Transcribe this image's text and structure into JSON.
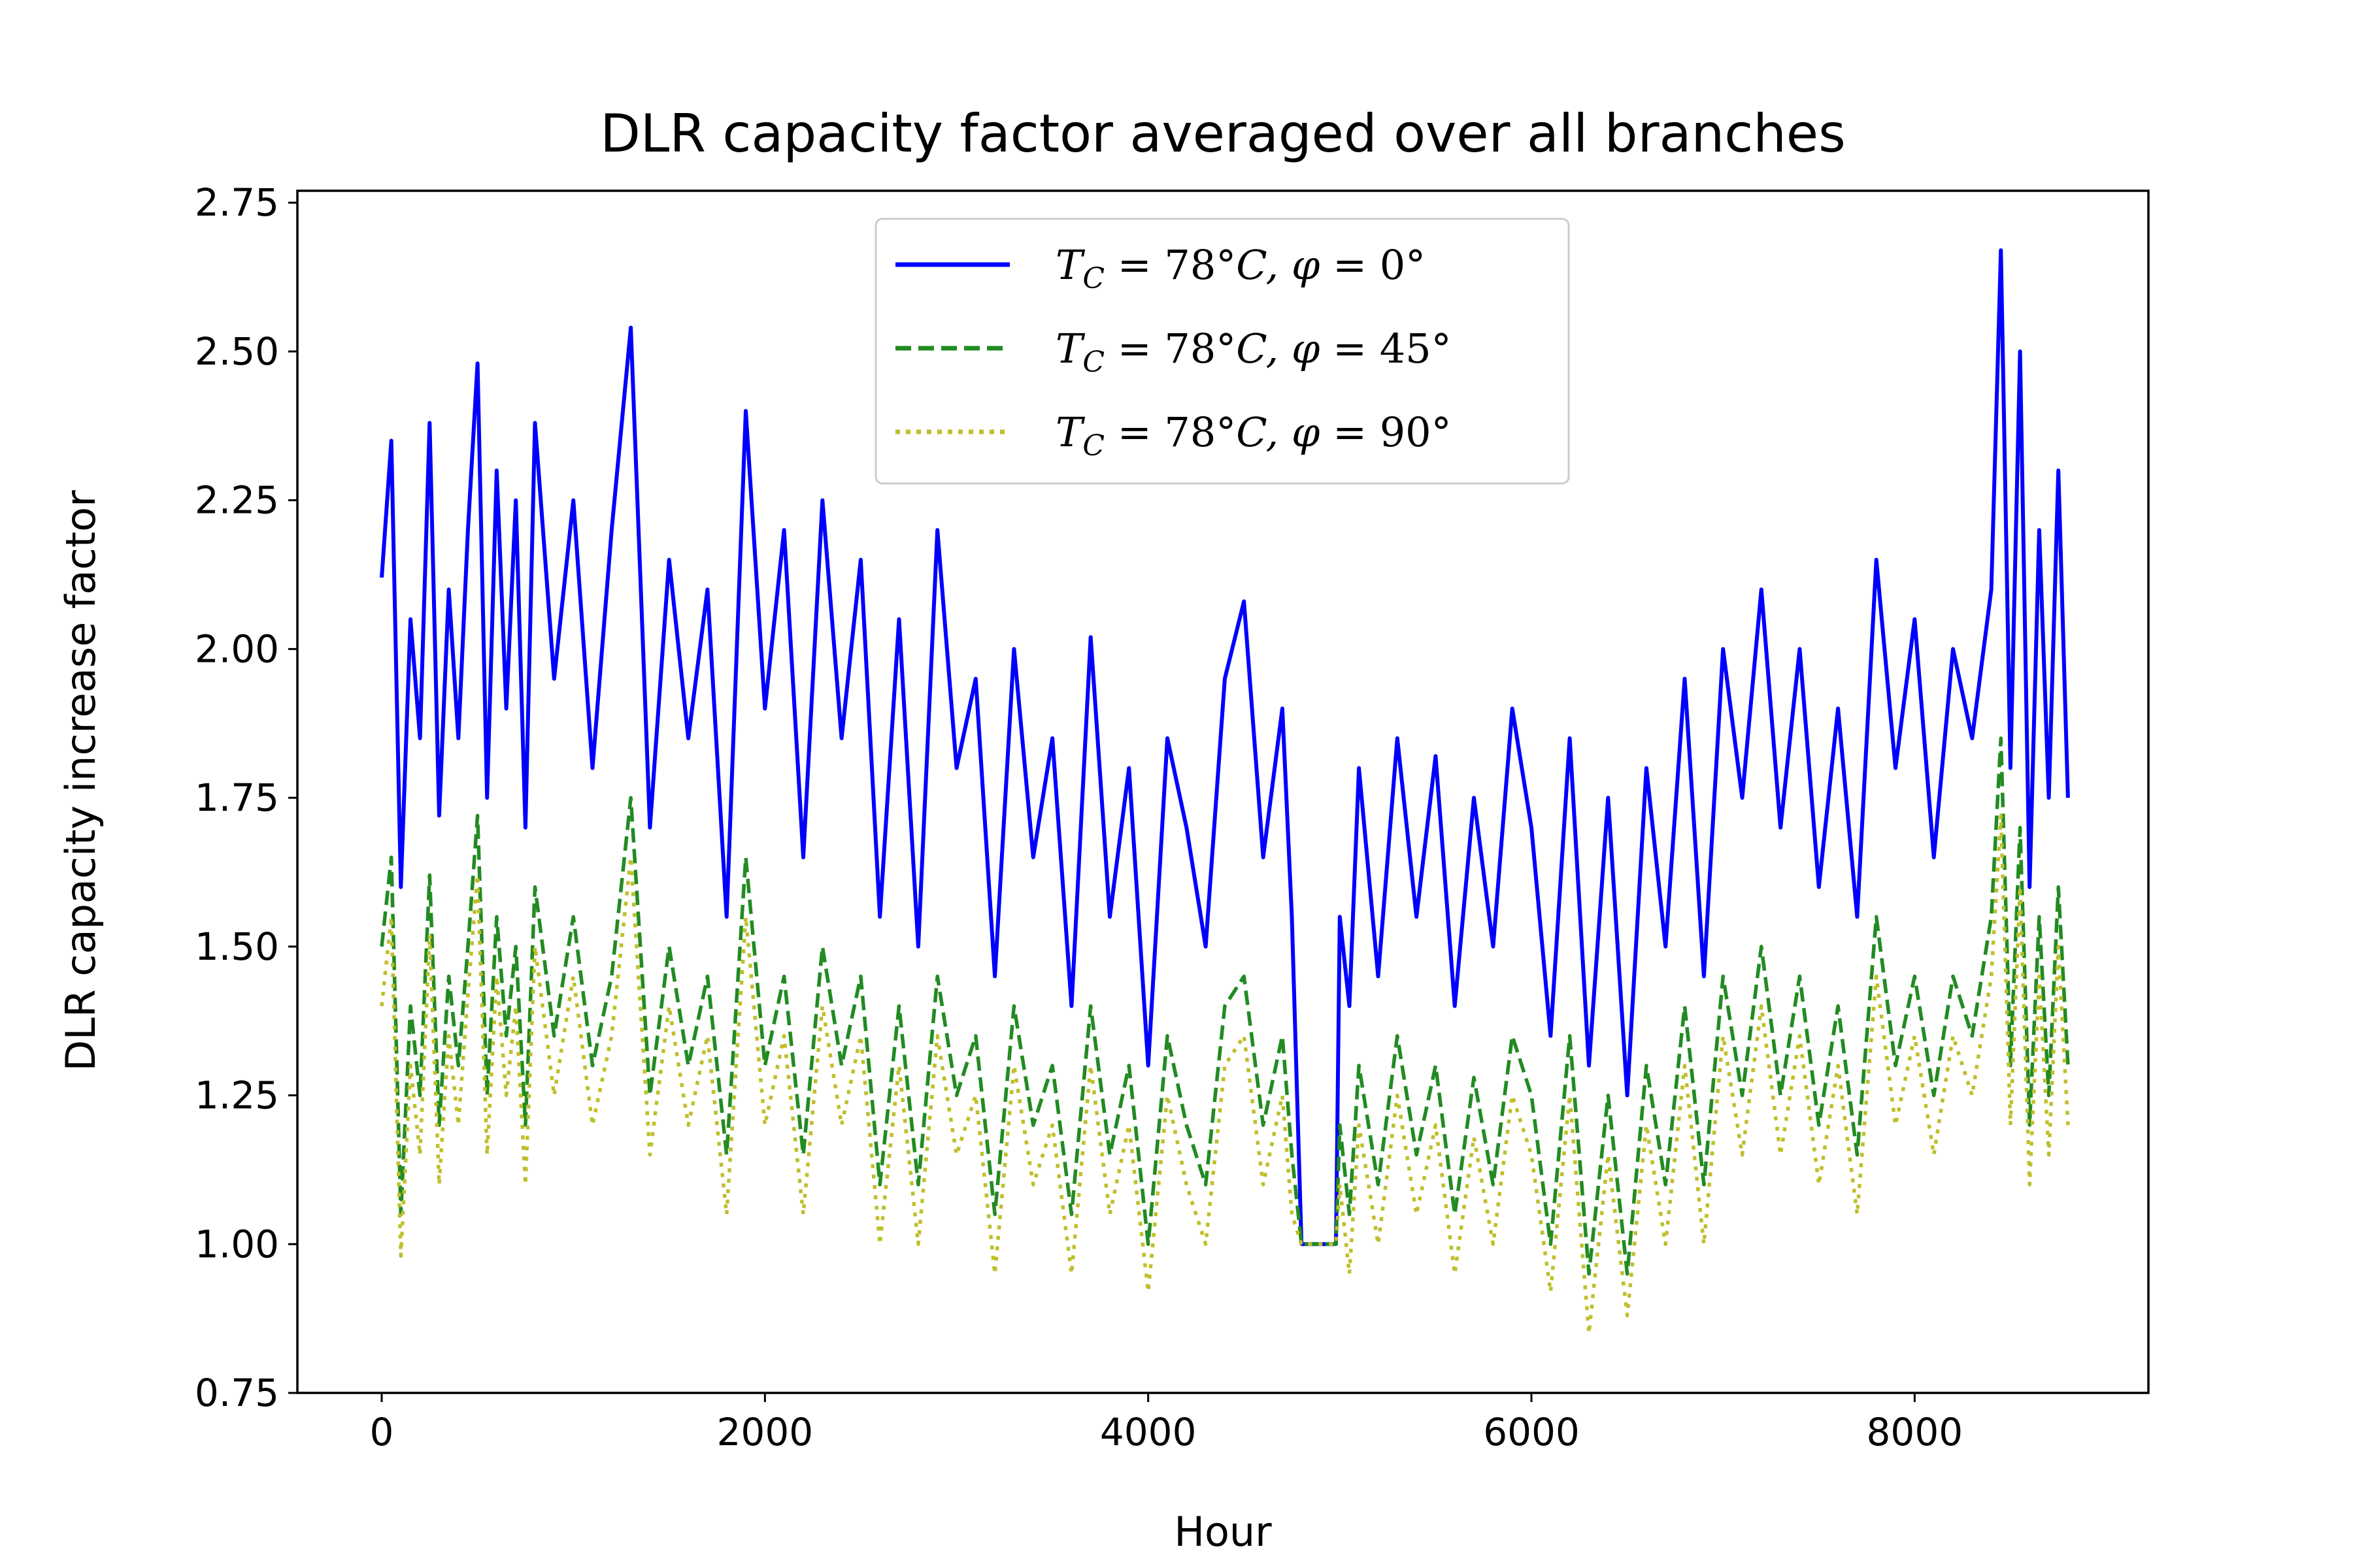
{
  "chart_data": {
    "type": "line",
    "title": "DLR capacity factor averaged over all branches",
    "xlabel": "Hour",
    "ylabel": "DLR capacity increase factor",
    "xlim": [
      -440,
      9220
    ],
    "ylim": [
      0.75,
      2.77
    ],
    "x_ticks": [
      0,
      2000,
      4000,
      6000,
      8000
    ],
    "x_tick_labels": [
      "0",
      "2000",
      "4000",
      "6000",
      "8000"
    ],
    "y_ticks": [
      0.75,
      1.0,
      1.25,
      1.5,
      1.75,
      2.0,
      2.25,
      2.5,
      2.75
    ],
    "y_tick_labels": [
      "0.75",
      "1.00",
      "1.25",
      "1.50",
      "1.75",
      "2.00",
      "2.25",
      "2.50",
      "2.75"
    ],
    "grid": false,
    "legend_position": "top-center",
    "series": [
      {
        "name": "T_C = 78°C, φ = 0°",
        "label_parts": {
          "var": "T",
          "sub": "C",
          "eq1": " = 78°",
          "mid": "C, ",
          "phi": "φ",
          "eq2": " = 0°"
        },
        "color": "#0000ff",
        "dash": "solid",
        "x": [
          0,
          50,
          100,
          150,
          200,
          250,
          300,
          350,
          400,
          450,
          500,
          550,
          600,
          650,
          700,
          750,
          800,
          900,
          1000,
          1100,
          1200,
          1300,
          1400,
          1500,
          1600,
          1700,
          1800,
          1900,
          2000,
          2100,
          2200,
          2300,
          2400,
          2500,
          2600,
          2700,
          2800,
          2900,
          3000,
          3100,
          3200,
          3300,
          3400,
          3500,
          3600,
          3700,
          3800,
          3900,
          4000,
          4100,
          4200,
          4300,
          4400,
          4500,
          4600,
          4700,
          4750,
          4800,
          4900,
          4980,
          5000,
          5050,
          5100,
          5200,
          5300,
          5400,
          5500,
          5600,
          5700,
          5800,
          5900,
          6000,
          6100,
          6200,
          6300,
          6400,
          6500,
          6600,
          6700,
          6800,
          6900,
          7000,
          7100,
          7200,
          7300,
          7400,
          7500,
          7600,
          7700,
          7800,
          7900,
          8000,
          8100,
          8200,
          8300,
          8400,
          8450,
          8500,
          8550,
          8600,
          8650,
          8700,
          8750,
          8800
        ],
        "y": [
          2.12,
          2.35,
          1.6,
          2.05,
          1.85,
          2.38,
          1.72,
          2.1,
          1.85,
          2.2,
          2.48,
          1.75,
          2.3,
          1.9,
          2.25,
          1.7,
          2.38,
          1.95,
          2.25,
          1.8,
          2.2,
          2.54,
          1.7,
          2.15,
          1.85,
          2.1,
          1.55,
          2.4,
          1.9,
          2.2,
          1.65,
          2.25,
          1.85,
          2.15,
          1.55,
          2.05,
          1.5,
          2.2,
          1.8,
          1.95,
          1.45,
          2.0,
          1.65,
          1.85,
          1.4,
          2.02,
          1.55,
          1.8,
          1.3,
          1.85,
          1.7,
          1.5,
          1.95,
          2.08,
          1.65,
          1.9,
          1.55,
          1.0,
          1.0,
          1.0,
          1.55,
          1.4,
          1.8,
          1.45,
          1.85,
          1.55,
          1.82,
          1.4,
          1.75,
          1.5,
          1.9,
          1.7,
          1.35,
          1.85,
          1.3,
          1.75,
          1.25,
          1.8,
          1.5,
          1.95,
          1.45,
          2.0,
          1.75,
          2.1,
          1.7,
          2.0,
          1.6,
          1.9,
          1.55,
          2.15,
          1.8,
          2.05,
          1.65,
          2.0,
          1.85,
          2.1,
          2.67,
          1.8,
          2.5,
          1.6,
          2.2,
          1.75,
          2.3,
          1.75
        ]
      },
      {
        "name": "T_C = 78°C, φ = 45°",
        "label_parts": {
          "var": "T",
          "sub": "C",
          "eq1": " = 78°",
          "mid": "C, ",
          "phi": "φ",
          "eq2": " = 45°"
        },
        "color": "#228b22",
        "dash": "dashed",
        "x": [
          0,
          50,
          100,
          150,
          200,
          250,
          300,
          350,
          400,
          450,
          500,
          550,
          600,
          650,
          700,
          750,
          800,
          900,
          1000,
          1100,
          1200,
          1300,
          1400,
          1500,
          1600,
          1700,
          1800,
          1900,
          2000,
          2100,
          2200,
          2300,
          2400,
          2500,
          2600,
          2700,
          2800,
          2900,
          3000,
          3100,
          3200,
          3300,
          3400,
          3500,
          3600,
          3700,
          3800,
          3900,
          4000,
          4100,
          4200,
          4300,
          4400,
          4500,
          4600,
          4700,
          4750,
          4800,
          4900,
          4980,
          5000,
          5050,
          5100,
          5200,
          5300,
          5400,
          5500,
          5600,
          5700,
          5800,
          5900,
          6000,
          6100,
          6200,
          6300,
          6400,
          6500,
          6600,
          6700,
          6800,
          6900,
          7000,
          7100,
          7200,
          7300,
          7400,
          7500,
          7600,
          7700,
          7800,
          7900,
          8000,
          8100,
          8200,
          8300,
          8400,
          8450,
          8500,
          8550,
          8600,
          8650,
          8700,
          8750,
          8800
        ],
        "y": [
          1.5,
          1.65,
          1.05,
          1.4,
          1.25,
          1.62,
          1.2,
          1.45,
          1.3,
          1.5,
          1.72,
          1.25,
          1.55,
          1.35,
          1.5,
          1.2,
          1.6,
          1.35,
          1.55,
          1.3,
          1.45,
          1.75,
          1.25,
          1.5,
          1.3,
          1.45,
          1.15,
          1.65,
          1.3,
          1.45,
          1.15,
          1.5,
          1.3,
          1.45,
          1.1,
          1.4,
          1.1,
          1.45,
          1.25,
          1.35,
          1.05,
          1.4,
          1.2,
          1.3,
          1.05,
          1.4,
          1.15,
          1.3,
          1.0,
          1.35,
          1.2,
          1.1,
          1.4,
          1.45,
          1.2,
          1.35,
          1.15,
          1.0,
          1.0,
          1.0,
          1.2,
          1.05,
          1.3,
          1.1,
          1.35,
          1.15,
          1.3,
          1.05,
          1.28,
          1.1,
          1.35,
          1.25,
          1.0,
          1.35,
          0.95,
          1.25,
          0.95,
          1.3,
          1.1,
          1.4,
          1.1,
          1.45,
          1.25,
          1.5,
          1.25,
          1.45,
          1.2,
          1.4,
          1.15,
          1.55,
          1.3,
          1.45,
          1.25,
          1.45,
          1.35,
          1.55,
          1.85,
          1.3,
          1.7,
          1.2,
          1.55,
          1.25,
          1.6,
          1.3
        ]
      },
      {
        "name": "T_C = 78°C, φ = 90°",
        "label_parts": {
          "var": "T",
          "sub": "C",
          "eq1": " = 78°",
          "mid": "C, ",
          "phi": "φ",
          "eq2": " = 90°"
        },
        "color": "#bfbf2a",
        "dash": "dotted",
        "x": [
          0,
          50,
          100,
          150,
          200,
          250,
          300,
          350,
          400,
          450,
          500,
          550,
          600,
          650,
          700,
          750,
          800,
          900,
          1000,
          1100,
          1200,
          1300,
          1400,
          1500,
          1600,
          1700,
          1800,
          1900,
          2000,
          2100,
          2200,
          2300,
          2400,
          2500,
          2600,
          2700,
          2800,
          2900,
          3000,
          3100,
          3200,
          3300,
          3400,
          3500,
          3600,
          3700,
          3800,
          3900,
          4000,
          4100,
          4200,
          4300,
          4400,
          4500,
          4600,
          4700,
          4750,
          4800,
          4900,
          4980,
          5000,
          5050,
          5100,
          5200,
          5300,
          5400,
          5500,
          5600,
          5700,
          5800,
          5900,
          6000,
          6100,
          6200,
          6300,
          6400,
          6500,
          6600,
          6700,
          6800,
          6900,
          7000,
          7100,
          7200,
          7300,
          7400,
          7500,
          7600,
          7700,
          7800,
          7900,
          8000,
          8100,
          8200,
          8300,
          8400,
          8450,
          8500,
          8550,
          8600,
          8650,
          8700,
          8750,
          8800
        ],
        "y": [
          1.4,
          1.55,
          0.98,
          1.3,
          1.15,
          1.52,
          1.1,
          1.35,
          1.2,
          1.42,
          1.62,
          1.15,
          1.45,
          1.25,
          1.4,
          1.1,
          1.5,
          1.25,
          1.45,
          1.2,
          1.35,
          1.65,
          1.15,
          1.4,
          1.2,
          1.35,
          1.05,
          1.55,
          1.2,
          1.35,
          1.05,
          1.4,
          1.2,
          1.35,
          1.0,
          1.3,
          1.0,
          1.35,
          1.15,
          1.25,
          0.95,
          1.3,
          1.1,
          1.2,
          0.95,
          1.3,
          1.05,
          1.2,
          0.92,
          1.25,
          1.1,
          1.0,
          1.3,
          1.35,
          1.1,
          1.25,
          1.05,
          1.0,
          1.0,
          1.0,
          1.1,
          0.95,
          1.2,
          1.0,
          1.25,
          1.05,
          1.2,
          0.95,
          1.18,
          1.0,
          1.25,
          1.15,
          0.92,
          1.25,
          0.85,
          1.15,
          0.88,
          1.2,
          1.0,
          1.3,
          1.0,
          1.35,
          1.15,
          1.4,
          1.15,
          1.35,
          1.1,
          1.3,
          1.05,
          1.45,
          1.2,
          1.35,
          1.15,
          1.35,
          1.25,
          1.45,
          1.72,
          1.2,
          1.6,
          1.1,
          1.45,
          1.15,
          1.5,
          1.2
        ]
      }
    ]
  }
}
